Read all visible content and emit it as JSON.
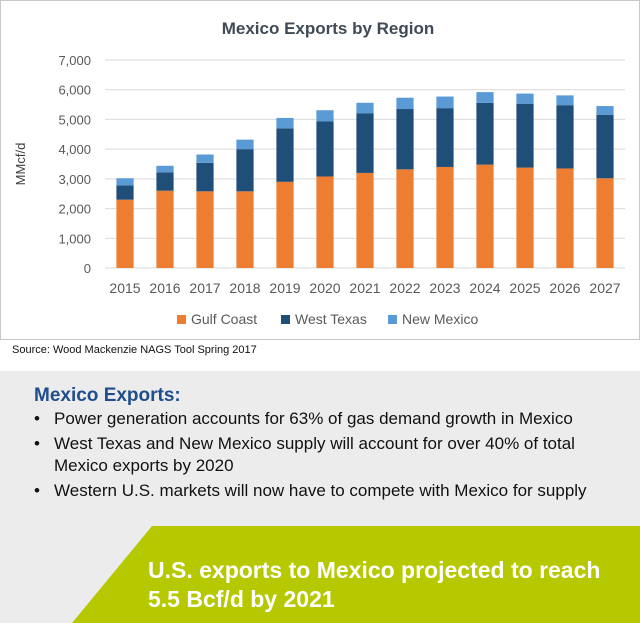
{
  "chart_data": {
    "type": "bar",
    "stacked": true,
    "title": "Mexico Exports by Region",
    "ylabel": "MMcf/d",
    "xlabel": "",
    "ylim": [
      0,
      7000
    ],
    "yticks": [
      "0",
      "1,000",
      "2,000",
      "3,000",
      "4,000",
      "5,000",
      "6,000",
      "7,000"
    ],
    "ytick_values": [
      0,
      1000,
      2000,
      3000,
      4000,
      5000,
      6000,
      7000
    ],
    "grid": true,
    "legend_position": "bottom",
    "categories": [
      "2015",
      "2016",
      "2017",
      "2018",
      "2019",
      "2020",
      "2021",
      "2022",
      "2023",
      "2024",
      "2025",
      "2026",
      "2027"
    ],
    "series": [
      {
        "name": "Gulf Coast",
        "color": "#ed7d31",
        "values": [
          2300,
          2600,
          2580,
          2580,
          2900,
          3080,
          3200,
          3320,
          3400,
          3480,
          3380,
          3350,
          3020
        ]
      },
      {
        "name": "West Texas",
        "color": "#1f4e79",
        "values": [
          480,
          620,
          960,
          1420,
          1800,
          1850,
          2000,
          2030,
          1980,
          2080,
          2150,
          2130,
          2130
        ]
      },
      {
        "name": "New Mexico",
        "color": "#5b9bd5",
        "values": [
          240,
          220,
          280,
          320,
          350,
          380,
          360,
          380,
          390,
          360,
          340,
          330,
          300
        ]
      }
    ]
  },
  "source": "Source: Wood Mackenzie NAGS Tool Spring 2017",
  "info": {
    "title": "Mexico Exports:",
    "bullets": [
      {
        "text": "Power generation accounts for 63% of gas demand growth in Mexico"
      },
      {
        "text": "West Texas and New Mexico supply will account for over 40% of total Mexico exports by 2020"
      },
      {
        "text": "Western U.S. markets will now have to compete with Mexico for supply"
      }
    ],
    "bullet_char": "•"
  },
  "banner": {
    "text": "U.S. exports to Mexico projected to reach 5.5 Bcf/d by 2021",
    "color": "#b5c800"
  }
}
